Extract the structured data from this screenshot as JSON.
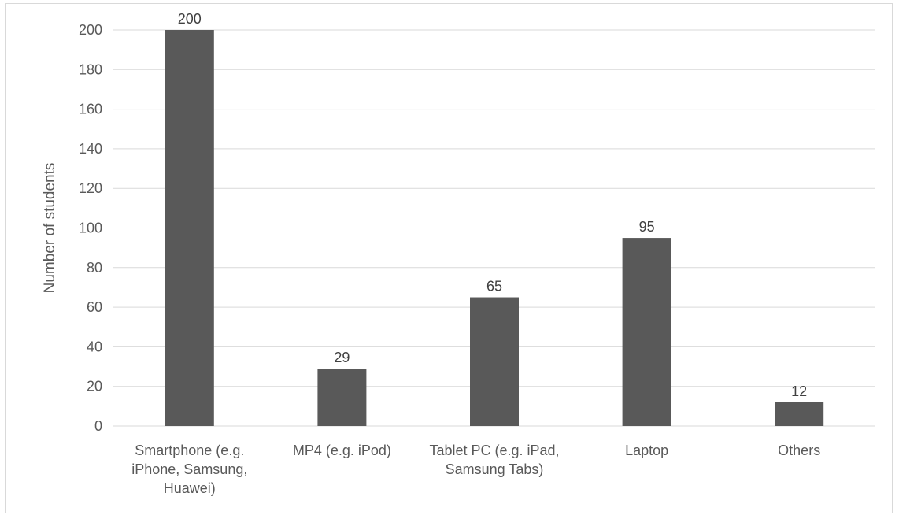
{
  "chart_data": {
    "type": "bar",
    "title": "",
    "xlabel": "",
    "ylabel": "Number of students",
    "categories": [
      [
        "Smartphone (e.g.",
        "iPhone, Samsung,",
        "Huawei)"
      ],
      [
        "MP4 (e.g. iPod)"
      ],
      [
        "Tablet PC (e.g. iPad,",
        "Samsung Tabs)"
      ],
      [
        "Laptop"
      ],
      [
        "Others"
      ]
    ],
    "values": [
      200,
      29,
      65,
      95,
      12
    ],
    "data_labels": [
      "200",
      "29",
      "65",
      "95",
      "12"
    ],
    "ylim": [
      0,
      200
    ],
    "yticks": [
      0,
      20,
      40,
      60,
      80,
      100,
      120,
      140,
      160,
      180,
      200
    ],
    "grid": true,
    "legend": "none",
    "bar_color": "#595959",
    "grid_color": "#d9d9d9"
  }
}
